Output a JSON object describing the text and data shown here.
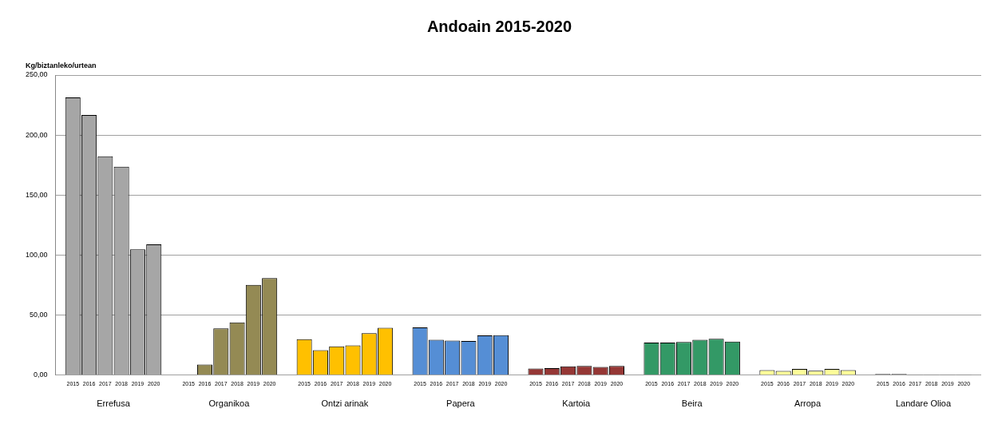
{
  "chart_data": {
    "type": "bar",
    "title": "Andoain 2015-2020",
    "ylabel": "Kg/biztanleko/urtean",
    "categories": [
      "Errefusa",
      "Organikoa",
      "Ontzi arinak",
      "Papera",
      "Kartoia",
      "Beira",
      "Arropa",
      "Landare Olioa"
    ],
    "series": [
      {
        "name": "2015",
        "colors": [
          "#a6a6a6",
          "#948a54",
          "#ffc000",
          "#558ed5",
          "#953735",
          "#339966",
          "#ffff99",
          "#7f7f7f"
        ],
        "values": [
          231.4,
          null,
          30.0,
          39.8,
          5.6,
          27.1,
          4.2,
          1.0
        ]
      },
      {
        "name": "2016",
        "colors": [
          "#a6a6a6",
          "#948a54",
          "#ffc000",
          "#558ed5",
          "#953735",
          "#339966",
          "#ffff99",
          "#7f7f7f"
        ],
        "values": [
          216.8,
          8.8,
          20.8,
          29.4,
          5.8,
          27.1,
          3.5,
          1.0
        ]
      },
      {
        "name": "2017",
        "colors": [
          "#a6a6a6",
          "#948a54",
          "#ffc000",
          "#558ed5",
          "#953735",
          "#339966",
          "#ffff99",
          "#7f7f7f"
        ],
        "values": [
          182.3,
          39.0,
          24.0,
          28.8,
          7.3,
          27.6,
          5.2,
          0.5
        ]
      },
      {
        "name": "2018",
        "colors": [
          "#a6a6a6",
          "#948a54",
          "#ffc000",
          "#558ed5",
          "#953735",
          "#339966",
          "#ffff99",
          "#7f7f7f"
        ],
        "values": [
          173.6,
          43.9,
          24.8,
          28.5,
          7.7,
          29.4,
          3.7,
          0.5
        ]
      },
      {
        "name": "2019",
        "colors": [
          "#a6a6a6",
          "#948a54",
          "#ffc000",
          "#558ed5",
          "#953735",
          "#339966",
          "#ffff99",
          "#7f7f7f"
        ],
        "values": [
          104.8,
          75.2,
          35.0,
          33.1,
          6.9,
          30.3,
          5.2,
          0.5
        ]
      },
      {
        "name": "2020",
        "colors": [
          "#a6a6a6",
          "#948a54",
          "#ffc000",
          "#558ed5",
          "#953735",
          "#339966",
          "#ffff99",
          "#7f7f7f"
        ],
        "values": [
          109.0,
          80.8,
          39.4,
          33.3,
          7.7,
          27.9,
          4.2,
          0.5
        ]
      }
    ],
    "ylim": [
      0,
      250
    ],
    "yticks": [
      {
        "value": 0,
        "label": "0,00"
      },
      {
        "value": 50,
        "label": "50,00"
      },
      {
        "value": 100,
        "label": "100,00"
      },
      {
        "value": 150,
        "label": "150,00"
      },
      {
        "value": 200,
        "label": "200,00"
      },
      {
        "value": 250,
        "label": "250,00"
      }
    ],
    "grid": "y",
    "legend": false
  }
}
